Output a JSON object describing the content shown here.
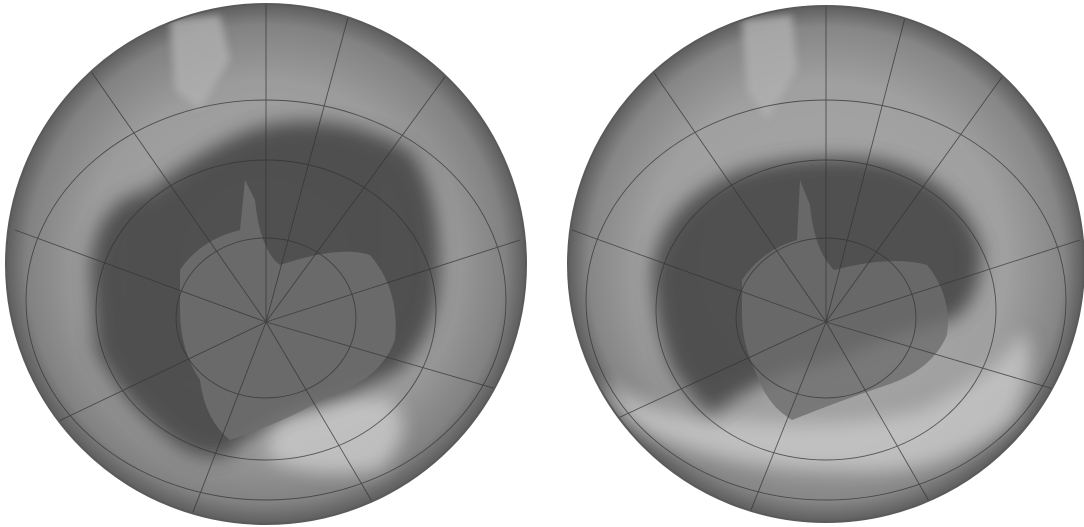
{
  "image": {
    "description_free": true
  },
  "globes": [
    {
      "id": "left",
      "hole_level": 0.78
    },
    {
      "id": "right",
      "hole_level": 0.62
    }
  ],
  "colors": {
    "background": "#ffffff",
    "ocean_edge": "#6a6a6a",
    "ocean_mid": "#9a9a9a",
    "ocean_light": "#b4b4b4",
    "hole_dark": "#4a4a4a",
    "continent": "#707070",
    "continent_light": "#c8c8c8",
    "grid": "#3a3a3a"
  }
}
